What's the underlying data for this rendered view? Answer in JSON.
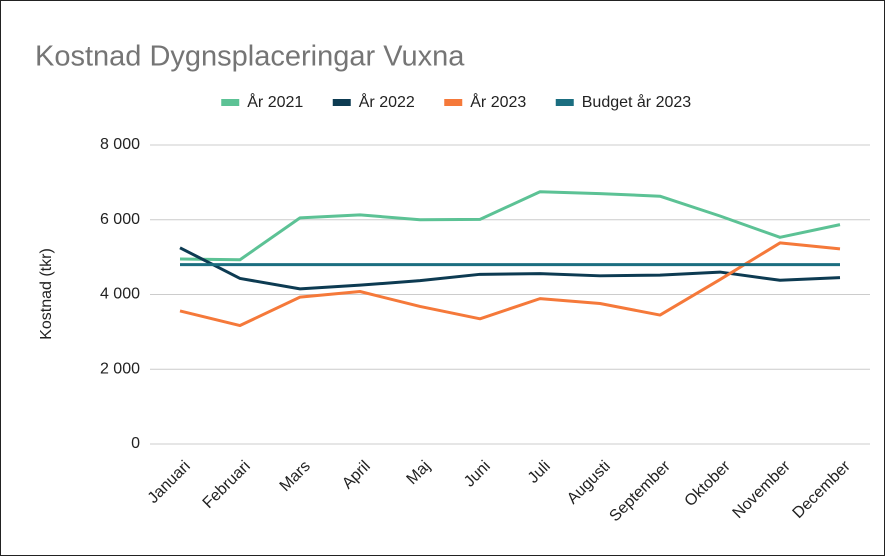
{
  "chart_data": {
    "type": "line",
    "title": "Kostnad Dygnsplaceringar Vuxna",
    "y_label": "Kostnad (tkr)",
    "categories": [
      "Januari",
      "Februari",
      "Mars",
      "April",
      "Maj",
      "Juni",
      "Juli",
      "Augusti",
      "September",
      "Oktober",
      "November",
      "December"
    ],
    "series": [
      {
        "name": "År 2021",
        "color": "#5cc295",
        "values": [
          4950,
          4930,
          6050,
          6130,
          6000,
          6010,
          6750,
          6700,
          6630,
          6100,
          5530,
          5870
        ]
      },
      {
        "name": "År 2022",
        "color": "#0d3b52",
        "values": [
          5250,
          4430,
          4150,
          4250,
          4370,
          4540,
          4560,
          4500,
          4520,
          4600,
          4380,
          4450
        ]
      },
      {
        "name": "År 2023",
        "color": "#f5793a",
        "values": [
          3560,
          3170,
          3930,
          4080,
          3680,
          3350,
          3890,
          3760,
          3450,
          4400,
          5380,
          5220
        ]
      },
      {
        "name": "Budget år 2023",
        "color": "#1b6e80",
        "values": [
          4800,
          4800,
          4800,
          4800,
          4800,
          4800,
          4800,
          4800,
          4800,
          4800,
          4800,
          4800
        ]
      }
    ],
    "ylim": [
      0,
      8000
    ],
    "yticks": [
      0,
      {
        "value": 2000,
        "label": "2 000"
      },
      {
        "value": 4000,
        "label": "4 000"
      },
      {
        "value": 6000,
        "label": "6 000"
      },
      {
        "value": 8000,
        "label": "8 000"
      }
    ],
    "grid": true,
    "legend": "top"
  }
}
